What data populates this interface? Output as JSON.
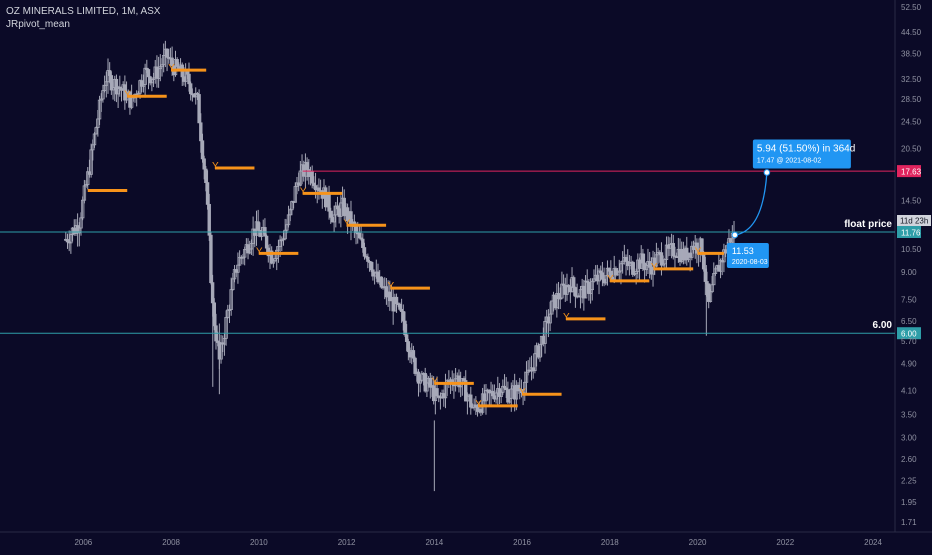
{
  "header": {
    "symbol_line": "OZ MINERALS LIMITED, 1M, ASX",
    "indicator": "JRpivot_mean"
  },
  "colors": {
    "background": "#0b0a27",
    "candle": "#a7a9b8",
    "pivot": "#f7931a",
    "hline": "#2e9ea8",
    "target_line": "#e0245e",
    "callout": "#2196f3",
    "axis_text": "#8f91a1"
  },
  "chart_data": {
    "type": "candlestick",
    "title": "OZ MINERALS LIMITED, 1M, ASX",
    "xlabel": "",
    "ylabel": "",
    "scale": "log",
    "ylim": [
      1.6,
      55
    ],
    "xlim": [
      2004.1,
      2024.5
    ],
    "x_ticks": [
      "2006",
      "2008",
      "2010",
      "2012",
      "2014",
      "2016",
      "2018",
      "2020",
      "2022",
      "2024"
    ],
    "y_ticks": [
      "52.50",
      "44.50",
      "38.50",
      "32.50",
      "28.50",
      "24.50",
      "20.50",
      "17.63",
      "14.50",
      "11.76",
      "10.50",
      "9.00",
      "7.50",
      "6.50",
      "6.00",
      "5.70",
      "4.90",
      "4.10",
      "3.50",
      "3.00",
      "2.60",
      "2.25",
      "1.95",
      "1.71"
    ],
    "price_path": [
      [
        2005.6,
        11.2
      ],
      [
        2005.9,
        12.5
      ],
      [
        2006.1,
        17
      ],
      [
        2006.3,
        24
      ],
      [
        2006.5,
        33
      ],
      [
        2006.8,
        31
      ],
      [
        2007.1,
        28
      ],
      [
        2007.4,
        34
      ],
      [
        2007.6,
        33
      ],
      [
        2007.9,
        38
      ],
      [
        2008.0,
        36
      ],
      [
        2008.2,
        34
      ],
      [
        2008.4,
        32
      ],
      [
        2008.6,
        28
      ],
      [
        2008.8,
        16
      ],
      [
        2008.95,
        7
      ],
      [
        2009.1,
        5
      ],
      [
        2009.3,
        7
      ],
      [
        2009.5,
        9.5
      ],
      [
        2009.7,
        10.5
      ],
      [
        2009.9,
        12
      ],
      [
        2010.1,
        11.5
      ],
      [
        2010.3,
        10
      ],
      [
        2010.5,
        11
      ],
      [
        2010.7,
        13
      ],
      [
        2010.9,
        17
      ],
      [
        2011.1,
        18
      ],
      [
        2011.3,
        16.5
      ],
      [
        2011.5,
        15
      ],
      [
        2011.7,
        13
      ],
      [
        2011.9,
        14
      ],
      [
        2012.1,
        12.5
      ],
      [
        2012.3,
        11
      ],
      [
        2012.5,
        10
      ],
      [
        2012.7,
        8.5
      ],
      [
        2012.9,
        7.8
      ],
      [
        2013.1,
        7.2
      ],
      [
        2013.3,
        6.5
      ],
      [
        2013.5,
        5
      ],
      [
        2013.7,
        4.4
      ],
      [
        2013.9,
        4.2
      ],
      [
        2014.1,
        3.8
      ],
      [
        2014.3,
        4.3
      ],
      [
        2014.5,
        4.5
      ],
      [
        2014.7,
        4.1
      ],
      [
        2014.9,
        3.6
      ],
      [
        2015.1,
        3.8
      ],
      [
        2015.3,
        4.0
      ],
      [
        2015.5,
        4.2
      ],
      [
        2015.7,
        4.0
      ],
      [
        2015.9,
        4.1
      ],
      [
        2016.1,
        4.4
      ],
      [
        2016.3,
        5.1
      ],
      [
        2016.5,
        6.0
      ],
      [
        2016.7,
        7.3
      ],
      [
        2016.9,
        7.9
      ],
      [
        2017.1,
        8.4
      ],
      [
        2017.3,
        7.8
      ],
      [
        2017.5,
        8.1
      ],
      [
        2017.7,
        8.6
      ],
      [
        2017.9,
        8.8
      ],
      [
        2018.1,
        9.2
      ],
      [
        2018.3,
        9.6
      ],
      [
        2018.5,
        9.3
      ],
      [
        2018.7,
        9.7
      ],
      [
        2018.9,
        9.3
      ],
      [
        2019.1,
        9.9
      ],
      [
        2019.3,
        10.2
      ],
      [
        2019.5,
        10.5
      ],
      [
        2019.7,
        10.0
      ],
      [
        2019.9,
        10.8
      ],
      [
        2020.1,
        10.6
      ],
      [
        2020.25,
        7.2
      ],
      [
        2020.4,
        8.8
      ],
      [
        2020.6,
        10.2
      ],
      [
        2020.75,
        11.3
      ],
      [
        2020.85,
        11.53
      ]
    ],
    "outlier_lows": [
      [
        2008.95,
        4.2
      ],
      [
        2009.1,
        4.0
      ],
      [
        2014.0,
        2.1
      ],
      [
        2020.2,
        5.9
      ]
    ],
    "pivot_levels": [
      {
        "x_start": 2006.1,
        "x_end": 2007.0,
        "value": 15.5,
        "marker": false
      },
      {
        "x_start": 2007.0,
        "x_end": 2007.9,
        "value": 29.0,
        "marker": true
      },
      {
        "x_start": 2008.0,
        "x_end": 2008.8,
        "value": 34.5,
        "marker": true
      },
      {
        "x_start": 2009.0,
        "x_end": 2009.9,
        "value": 18.0,
        "marker": true
      },
      {
        "x_start": 2010.0,
        "x_end": 2010.9,
        "value": 10.2,
        "marker": true
      },
      {
        "x_start": 2011.0,
        "x_end": 2011.9,
        "value": 15.2,
        "marker": true
      },
      {
        "x_start": 2012.0,
        "x_end": 2012.9,
        "value": 12.3,
        "marker": true
      },
      {
        "x_start": 2013.0,
        "x_end": 2013.9,
        "value": 8.1,
        "marker": true
      },
      {
        "x_start": 2014.0,
        "x_end": 2014.9,
        "value": 4.3,
        "marker": true
      },
      {
        "x_start": 2015.0,
        "x_end": 2015.9,
        "value": 3.7,
        "marker": true
      },
      {
        "x_start": 2016.0,
        "x_end": 2016.9,
        "value": 4.0,
        "marker": true
      },
      {
        "x_start": 2017.0,
        "x_end": 2017.9,
        "value": 6.6,
        "marker": true
      },
      {
        "x_start": 2018.0,
        "x_end": 2018.9,
        "value": 8.5,
        "marker": true
      },
      {
        "x_start": 2019.0,
        "x_end": 2019.9,
        "value": 9.2,
        "marker": true
      },
      {
        "x_start": 2020.0,
        "x_end": 2020.6,
        "value": 10.2,
        "marker": true
      }
    ],
    "pivot_marker_label": "Y",
    "hlines": [
      {
        "value": 11.76,
        "label": "float price",
        "tag": "11.76",
        "color": "#2e9ea8"
      },
      {
        "value": 6.0,
        "label": "6.00",
        "tag": "6.00",
        "color": "#2e9ea8"
      },
      {
        "value": 17.63,
        "label": "",
        "tag": "17.63",
        "color": "#e0245e",
        "x_start": 2011.0
      }
    ],
    "countdown_tag": "11d 23h",
    "target_line": {
      "from": [
        2020.85,
        11.53
      ],
      "to": [
        2021.58,
        17.47
      ]
    },
    "callout_start": {
      "value_text": "11.53",
      "date_text": "2020-08-03"
    },
    "callout_target": {
      "value_text": "5.94 (51.50%) in 364d",
      "date_text": "17.47 @ 2021-08-02"
    }
  }
}
